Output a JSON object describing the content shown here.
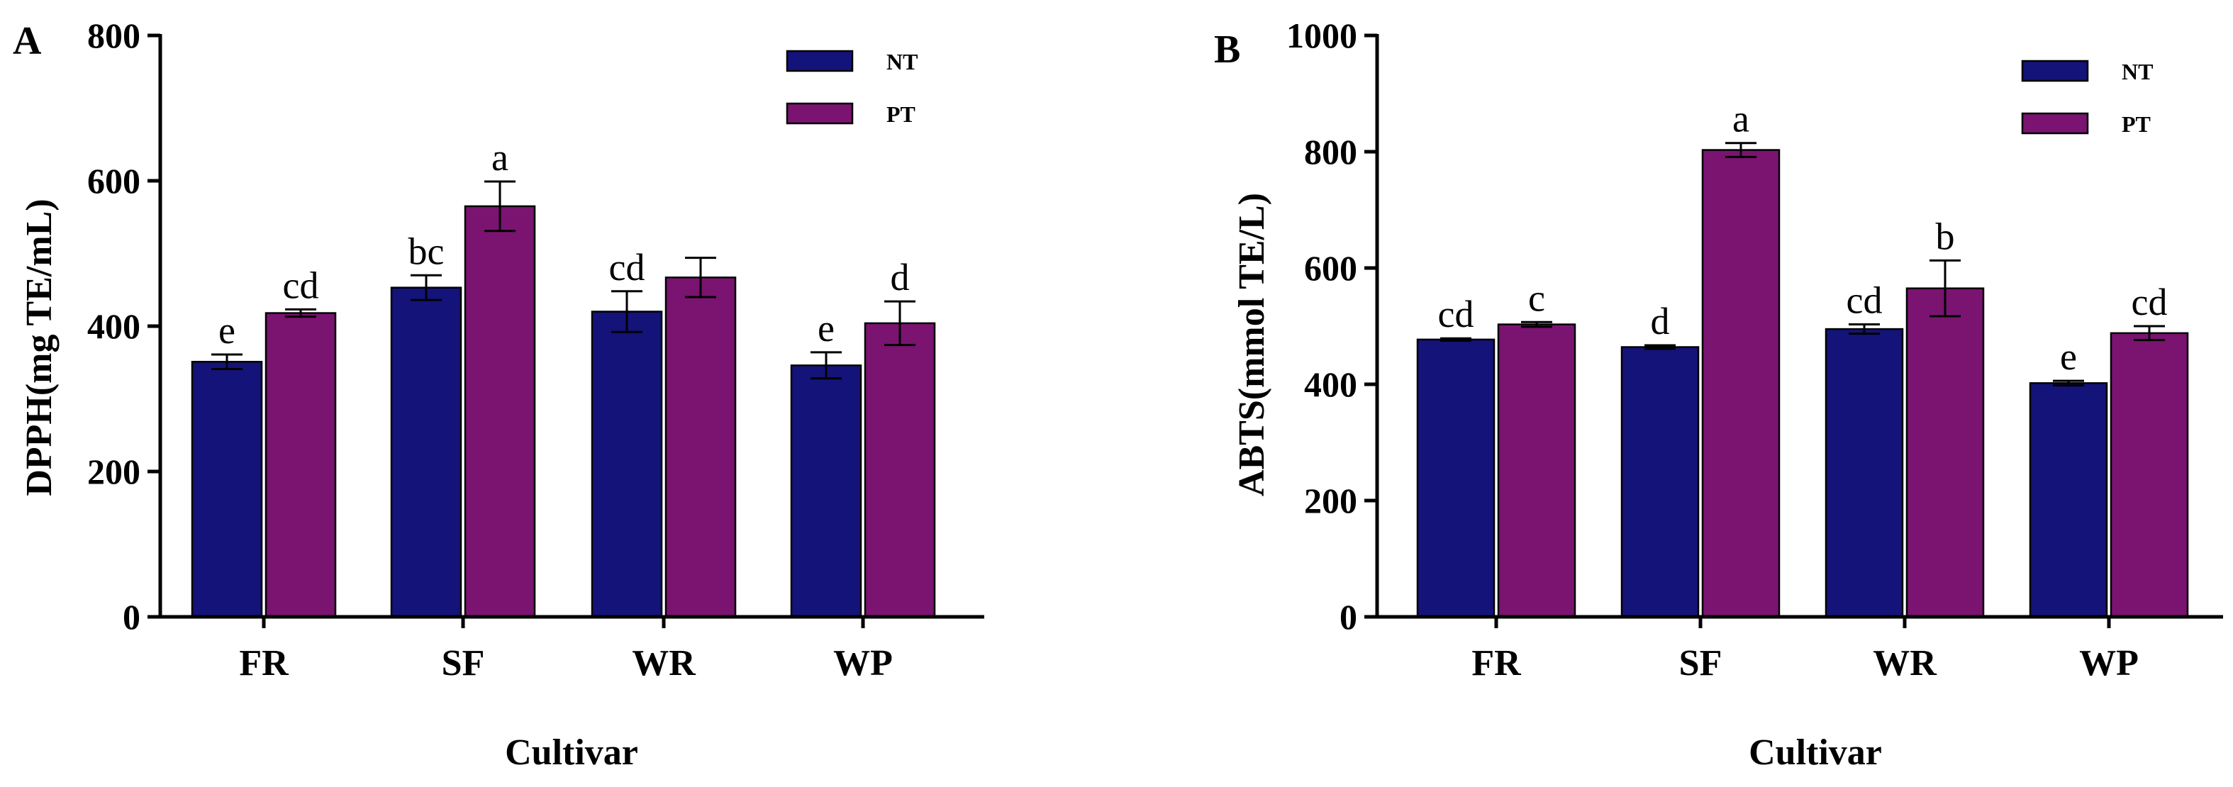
{
  "chart_data": [
    {
      "panel": "A",
      "type": "bar",
      "ylabel": "DPPH(mg TE/mL)",
      "xlabel": "Cultivar",
      "categories": [
        "FR",
        "SF",
        "WR",
        "WP"
      ],
      "ylim": [
        0,
        800
      ],
      "yticks": [
        0,
        200,
        400,
        600,
        800
      ],
      "legend_position": "top-right",
      "series": [
        {
          "name": "NT",
          "color": "#14137a",
          "values": [
            351,
            453,
            420,
            346
          ],
          "errors": [
            10,
            17,
            28,
            18
          ],
          "labels": [
            "e",
            "bc",
            "cd",
            "e"
          ]
        },
        {
          "name": "PT",
          "color": "#7a1470",
          "values": [
            418,
            565,
            467,
            404
          ],
          "errors": [
            5,
            34,
            27,
            30
          ],
          "labels": [
            "cd",
            "a",
            "",
            "d"
          ]
        }
      ]
    },
    {
      "panel": "B",
      "type": "bar",
      "ylabel": "ABTS(mmol TE/L)",
      "xlabel": "Cultivar",
      "categories": [
        "FR",
        "SF",
        "WR",
        "WP"
      ],
      "ylim": [
        0,
        1000
      ],
      "yticks": [
        0,
        200,
        400,
        600,
        800,
        1000
      ],
      "legend_position": "top-right",
      "series": [
        {
          "name": "NT",
          "color": "#14137a",
          "values": [
            477,
            464,
            495,
            402
          ],
          "errors": [
            2,
            3,
            8,
            4
          ],
          "labels": [
            "cd",
            "d",
            "cd",
            "e"
          ]
        },
        {
          "name": "PT",
          "color": "#7a1470",
          "values": [
            503,
            803,
            565,
            488
          ],
          "errors": [
            4,
            12,
            48,
            12
          ],
          "labels": [
            "c",
            "a",
            "b",
            "cd"
          ]
        }
      ]
    }
  ]
}
